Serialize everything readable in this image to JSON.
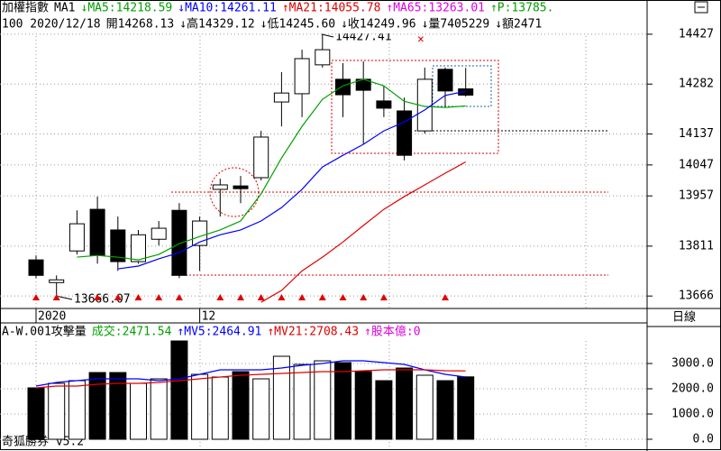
{
  "header": {
    "line1": [
      {
        "text": "加權指數",
        "color": "#000000"
      },
      {
        "text": "MA1",
        "color": "#000000"
      },
      {
        "text": "↓MA5:14218.59",
        "color": "#00a000"
      },
      {
        "text": "↓MA10:14261.11",
        "color": "#0000ff"
      },
      {
        "text": "↑MA21:14055.78",
        "color": "#e00000"
      },
      {
        "text": "↑MA65:13263.01",
        "color": "#e000e0"
      },
      {
        "text": "↑P:13785.",
        "color": "#00a000"
      }
    ],
    "line2": [
      {
        "text": "100 2020/12/18",
        "color": "#000000"
      },
      {
        "text": "開14268.13",
        "color": "#000000"
      },
      {
        "text": "↓高14329.12",
        "color": "#000000"
      },
      {
        "text": "↓低14245.60",
        "color": "#000000"
      },
      {
        "text": "↓收14249.96",
        "color": "#000000"
      },
      {
        "text": "↓量7405229",
        "color": "#000000"
      },
      {
        "text": "↓額2471",
        "color": "#000000"
      }
    ],
    "volume_line": [
      {
        "text": "A-W.001攻擊量",
        "color": "#000000"
      },
      {
        "text": "成交:2471.54",
        "color": "#00a000"
      },
      {
        "text": "↑MV5:2464.91",
        "color": "#0000ff"
      },
      {
        "text": "↑MV21:2708.43",
        "color": "#e00000"
      },
      {
        "text": "↑股本億:0",
        "color": "#e000e0"
      }
    ],
    "period": "日線",
    "footer": "奇狐勝券 v5.2",
    "high_note": "14427.41",
    "low_note": "13666.07"
  },
  "chart_data": [
    {
      "type": "candlestick",
      "categories": [
        "2020",
        null,
        null,
        null,
        null,
        null,
        null,
        null,
        "12",
        null,
        null,
        null,
        null,
        null,
        null,
        null,
        null,
        null,
        null,
        null,
        null,
        null
      ],
      "open": [
        13771,
        13705,
        13797,
        13918,
        13858,
        13766,
        13831,
        13915,
        13813,
        13976,
        13986,
        14010,
        14230,
        14254,
        14338,
        14296,
        14296,
        14233,
        14204,
        14146,
        14325,
        14268.13
      ],
      "high": [
        13784,
        13726,
        13915,
        13955,
        13897,
        13858,
        13884,
        13936,
        13897,
        14007,
        14015,
        14146,
        14317,
        14382,
        14427.41,
        14343,
        14348,
        14277,
        14243,
        14330,
        14330,
        14329.12
      ],
      "low": [
        13718,
        13666.07,
        13787,
        13760,
        13739,
        13760,
        13813,
        13718,
        13739,
        13897,
        13936,
        14002,
        14159,
        14186,
        14330,
        14186,
        14107,
        14186,
        14060,
        14138,
        14217,
        14245.6
      ],
      "close": [
        13726,
        13713,
        13876,
        13784,
        13766,
        13844,
        13863,
        13726,
        13884,
        13989,
        13978,
        14128,
        14256,
        14356,
        14382,
        14251,
        14264,
        14212,
        14075,
        14296,
        14262,
        14249.96
      ],
      "series": [
        {
          "name": "MA5",
          "color": "#00a000",
          "values": [
            null,
            null,
            13779,
            13784,
            13779,
            13771,
            13787,
            13818,
            13839,
            13858,
            13884,
            13963,
            14067,
            14159,
            14238,
            14277,
            14296,
            14277,
            14232,
            14217,
            14214,
            14218.59
          ]
        },
        {
          "name": "MA10",
          "color": "#0000ff",
          "values": [
            null,
            null,
            null,
            null,
            13745,
            13753,
            13774,
            13792,
            13823,
            13844,
            13858,
            13884,
            13923,
            13976,
            14041,
            14075,
            14107,
            14146,
            14172,
            14207,
            14249,
            14261.11
          ]
        },
        {
          "name": "MA21",
          "color": "#e00000",
          "values": [
            null,
            null,
            null,
            null,
            null,
            null,
            null,
            null,
            null,
            null,
            null,
            13648,
            13682,
            13739,
            13779,
            13823,
            13871,
            13918,
            13955,
            13989,
            14023,
            14055.78
          ]
        }
      ],
      "ylim": [
        13635,
        14474
      ],
      "yticks": [
        14427,
        14282,
        14137,
        14047,
        13957,
        13811,
        13666
      ],
      "grid": true
    },
    {
      "type": "bar",
      "values": [
        2036,
        2214,
        2321,
        2643,
        2643,
        2214,
        2393,
        3893,
        2571,
        2464,
        2679,
        2393,
        3286,
        2964,
        3107,
        3036,
        2679,
        2321,
        2821,
        2536,
        2321,
        2471.54
      ],
      "series": [
        {
          "name": "MV5",
          "color": "#0000ff",
          "values": [
            2107,
            2250,
            2321,
            2393,
            2393,
            2393,
            2321,
            2393,
            2571,
            2750,
            2750,
            2750,
            2821,
            2929,
            3000,
            3107,
            3107,
            3036,
            2964,
            2750,
            2571,
            2464.91
          ]
        },
        {
          "name": "MV21",
          "color": "#e00000",
          "values": [
            2036,
            2107,
            2107,
            2179,
            2214,
            2214,
            2250,
            2321,
            2393,
            2464,
            2536,
            2571,
            2607,
            2643,
            2679,
            2679,
            2714,
            2750,
            2750,
            2750,
            2714,
            2708.43
          ]
        }
      ],
      "ylim": [
        -357,
        3893
      ],
      "yticks": [
        {
          "value": 3000,
          "label": "3000.0"
        },
        {
          "value": 2000,
          "label": "2000.0"
        },
        {
          "value": 1000,
          "label": "1000.0"
        },
        {
          "value": 0,
          "label": "0.0"
        }
      ],
      "grid": true
    }
  ]
}
